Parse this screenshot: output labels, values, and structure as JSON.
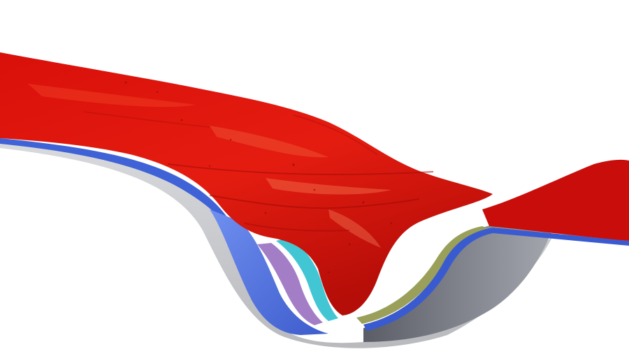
{
  "scene": {
    "background": "#ffffff",
    "colors": {
      "top_surface": "#e0120b",
      "top_surface_highlight": "#f0503a",
      "top_surface_shadow": "#a80d08",
      "far_ridge": "#c80d0a",
      "underside_blue": "#3a5bd0",
      "base_gray": "#7d8089",
      "base_gray_dark": "#4a4d55",
      "shadow_gray": "#c9cacd",
      "layer_gold": "#d9a832",
      "layer_cyan": "#42c6d4",
      "layer_periwinkle": "#7e97e8",
      "layer_purple": "#a37ec7",
      "layer_olive": "#9aa05a"
    }
  }
}
